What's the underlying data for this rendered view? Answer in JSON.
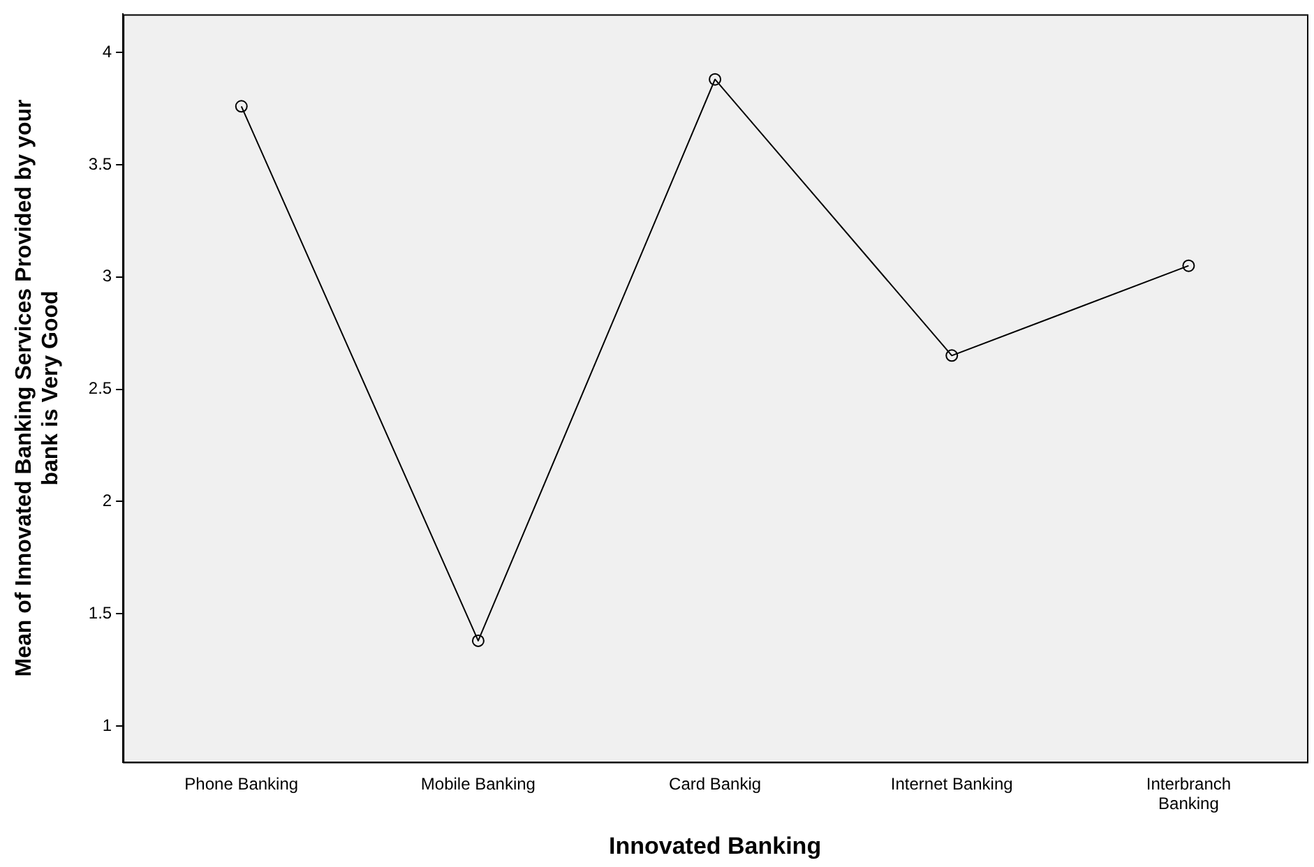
{
  "chart_data": {
    "type": "line",
    "xlabel": "Innovated Banking",
    "ylabel": "Mean of Innovated Banking Services Provided by your bank is Very Good",
    "categories": [
      "Phone Banking",
      "Mobile Banking",
      "Card Bankig",
      "Internet Banking",
      "Interbranch Banking"
    ],
    "values": [
      3.76,
      1.38,
      3.88,
      2.65,
      3.05
    ],
    "color": "#000000",
    "ylim": [
      0.84,
      4.17
    ],
    "yticks": [
      1,
      1.5,
      2,
      2.5,
      3,
      3.5,
      4
    ],
    "grid": false,
    "legend": false,
    "marker": "circle",
    "line_style": "solid"
  }
}
